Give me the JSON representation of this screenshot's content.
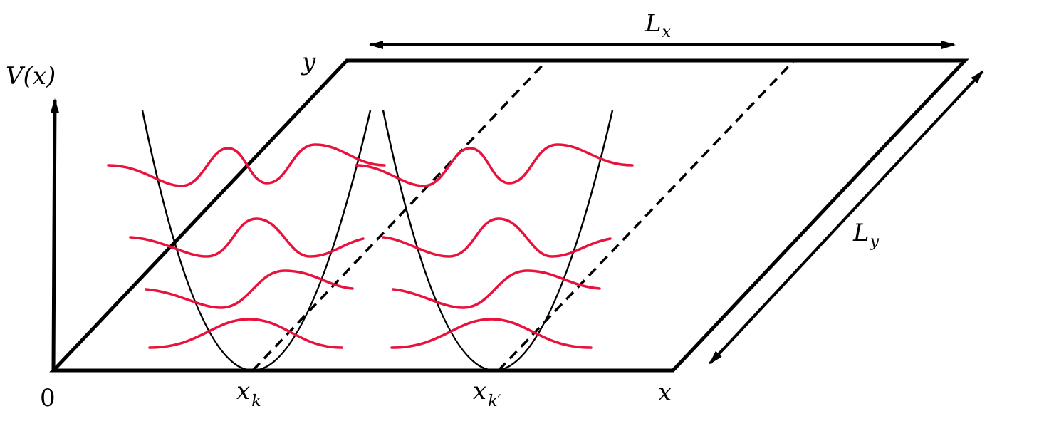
{
  "labels": {
    "potential_axis": "V(x)",
    "origin": "0",
    "x_axis": "x",
    "y_axis": "y",
    "well_k": "x",
    "well_k_sub": "k",
    "well_kp": "x",
    "well_kp_sub": "k′",
    "length_x": "L",
    "length_x_sub": "x",
    "length_y": "L",
    "length_y_sub": "y"
  },
  "colors": {
    "wavefunction": "#e8123c",
    "lines": "#000000"
  }
}
